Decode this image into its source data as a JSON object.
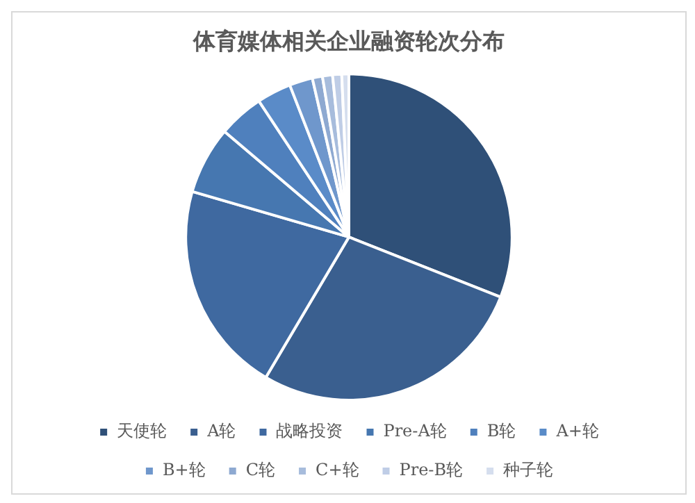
{
  "chart_data": {
    "type": "pie",
    "title": "体育媒体相关企业融资轮次分布",
    "categories": [
      "天使轮",
      "A轮",
      "战略投资",
      "Pre-A轮",
      "B轮",
      "A+轮",
      "B+轮",
      "C轮",
      "C+轮",
      "Pre-B轮",
      "种子轮"
    ],
    "values": [
      31,
      27.5,
      21,
      6.7,
      4.5,
      3.4,
      2.3,
      1,
      1,
      0.9,
      0.7
    ],
    "colors": [
      "#2f5078",
      "#3a5f8f",
      "#3f69a0",
      "#4677b0",
      "#4f80bd",
      "#5a8bc8",
      "#6f97cc",
      "#8ea9d1",
      "#a7bcdc",
      "#bfcde6",
      "#d5deee"
    ],
    "legend": "bottom"
  }
}
